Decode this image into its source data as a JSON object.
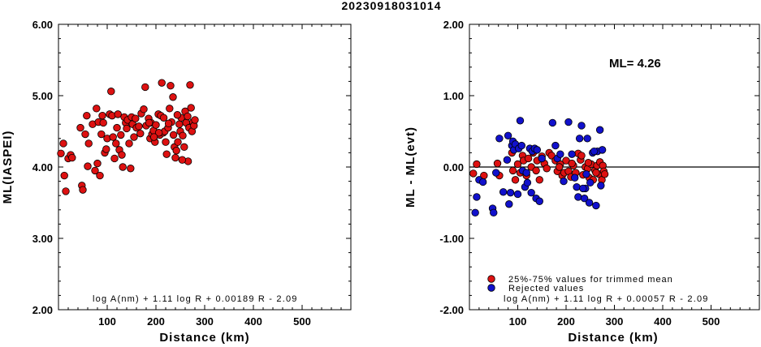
{
  "chart_data": [
    {
      "type": "scatter",
      "title": "20230918031014",
      "xlabel": "Distance (km)",
      "ylabel": "ML(IASPEI)",
      "xlim": [
        0,
        600
      ],
      "ylim": [
        2,
        6
      ],
      "xticks": [
        "100",
        "200",
        "300",
        "400",
        "500"
      ],
      "yticks": [
        "2.00",
        "3.00",
        "4.00",
        "5.00",
        "6.00"
      ],
      "formula": "log A(nm) + 1.11 log R + 0.00189 R - 2.09",
      "point_color": "#dd1111",
      "series": [
        {
          "points": [
            [
              5,
              4.19
            ],
            [
              10,
              4.33
            ],
            [
              12,
              3.88
            ],
            [
              15,
              3.66
            ],
            [
              20,
              4.12
            ],
            [
              25,
              4.17
            ],
            [
              28,
              4.13
            ],
            [
              45,
              4.55
            ],
            [
              48,
              3.74
            ],
            [
              50,
              3.68
            ],
            [
              55,
              4.46
            ],
            [
              58,
              4.72
            ],
            [
              60,
              4.01
            ],
            [
              62,
              4.33
            ],
            [
              70,
              4.6
            ],
            [
              75,
              3.95
            ],
            [
              78,
              4.82
            ],
            [
              80,
              4.05
            ],
            [
              82,
              4.63
            ],
            [
              85,
              3.88
            ],
            [
              88,
              4.46
            ],
            [
              90,
              4.72
            ],
            [
              92,
              4.62
            ],
            [
              95,
              4.2
            ],
            [
              98,
              4.25
            ],
            [
              100,
              4.4
            ],
            [
              105,
              4.74
            ],
            [
              108,
              5.06
            ],
            [
              110,
              4.72
            ],
            [
              112,
              4.42
            ],
            [
              115,
              4.12
            ],
            [
              118,
              4.33
            ],
            [
              120,
              4.55
            ],
            [
              122,
              4.74
            ],
            [
              125,
              4.24
            ],
            [
              128,
              4.45
            ],
            [
              130,
              4.17
            ],
            [
              132,
              4.0
            ],
            [
              135,
              4.7
            ],
            [
              138,
              4.62
            ],
            [
              140,
              4.54
            ],
            [
              142,
              4.66
            ],
            [
              145,
              4.33
            ],
            [
              148,
              3.98
            ],
            [
              150,
              4.7
            ],
            [
              152,
              4.6
            ],
            [
              155,
              4.42
            ],
            [
              158,
              4.68
            ],
            [
              160,
              4.55
            ],
            [
              165,
              4.57
            ],
            [
              168,
              4.47
            ],
            [
              170,
              4.75
            ],
            [
              175,
              4.81
            ],
            [
              178,
              5.12
            ],
            [
              180,
              4.58
            ],
            [
              185,
              4.68
            ],
            [
              188,
              4.4
            ],
            [
              190,
              4.62
            ],
            [
              192,
              4.46
            ],
            [
              195,
              4.51
            ],
            [
              198,
              4.35
            ],
            [
              200,
              4.59
            ],
            [
              205,
              4.74
            ],
            [
              208,
              4.45
            ],
            [
              210,
              4.72
            ],
            [
              212,
              5.18
            ],
            [
              215,
              4.48
            ],
            [
              218,
              4.5
            ],
            [
              220,
              4.35
            ],
            [
              222,
              4.18
            ],
            [
              225,
              4.55
            ],
            [
              228,
              4.82
            ],
            [
              230,
              5.14
            ],
            [
              232,
              4.63
            ],
            [
              235,
              4.98
            ],
            [
              238,
              4.28
            ],
            [
              240,
              4.13
            ],
            [
              242,
              4.23
            ],
            [
              245,
              4.35
            ],
            [
              248,
              4.6
            ],
            [
              250,
              4.5
            ],
            [
              252,
              4.69
            ],
            [
              255,
              4.44
            ],
            [
              258,
              4.28
            ],
            [
              260,
              4.78
            ],
            [
              262,
              4.62
            ],
            [
              265,
              4.71
            ],
            [
              268,
              4.55
            ],
            [
              270,
              5.15
            ],
            [
              272,
              4.83
            ],
            [
              274,
              4.5
            ],
            [
              276,
              4.63
            ],
            [
              278,
              4.58
            ],
            [
              280,
              4.66
            ],
            [
              266,
              4.08
            ],
            [
              254,
              4.1
            ],
            [
              244,
              4.73
            ],
            [
              236,
              4.45
            ],
            [
              226,
              4.61
            ],
            [
              216,
              4.69
            ],
            [
              206,
              4.48
            ],
            [
              196,
              4.42
            ],
            [
              186,
              4.62
            ]
          ]
        }
      ]
    },
    {
      "type": "scatter",
      "xlabel": "Distance (km)",
      "ylabel": "ML - ML(evt)",
      "xlim": [
        0,
        600
      ],
      "ylim": [
        -2,
        2
      ],
      "xticks": [
        "100",
        "200",
        "300",
        "400",
        "500"
      ],
      "yticks": [
        "-2.00",
        "-1.00",
        "0.00",
        "1.00",
        "2.00"
      ],
      "reference_line_y": 0,
      "annotation": "ML= 4.26",
      "formula": "log A(nm) + 1.11 log R + 0.00057 R - 2.09",
      "series": [
        {
          "name": "25%-75% values for trimmed mean",
          "color": "#dd1111",
          "points": [
            [
              8,
              -0.09
            ],
            [
              15,
              0.04
            ],
            [
              30,
              -0.12
            ],
            [
              58,
              0.05
            ],
            [
              62,
              -0.12
            ],
            [
              88,
              0.2
            ],
            [
              90,
              -0.05
            ],
            [
              95,
              -0.18
            ],
            [
              100,
              0.04
            ],
            [
              105,
              -0.08
            ],
            [
              110,
              0.16
            ],
            [
              112,
              0.09
            ],
            [
              118,
              -0.12
            ],
            [
              122,
              0.12
            ],
            [
              128,
              0.0
            ],
            [
              132,
              0.2
            ],
            [
              138,
              -0.05
            ],
            [
              140,
              0.09
            ],
            [
              145,
              -0.18
            ],
            [
              150,
              0.15
            ],
            [
              155,
              0.05
            ],
            [
              160,
              -0.02
            ],
            [
              165,
              0.2
            ],
            [
              170,
              0.16
            ],
            [
              178,
              0.09
            ],
            [
              182,
              -0.06
            ],
            [
              188,
              0.04
            ],
            [
              192,
              -0.12
            ],
            [
              196,
              -0.08
            ],
            [
              200,
              0.09
            ],
            [
              205,
              -0.06
            ],
            [
              210,
              -0.14
            ],
            [
              215,
              0.02
            ],
            [
              220,
              -0.08
            ],
            [
              225,
              0.19
            ],
            [
              230,
              0.1
            ],
            [
              235,
              -0.11
            ],
            [
              240,
              0.0
            ],
            [
              245,
              -0.02
            ],
            [
              248,
              -0.15
            ],
            [
              252,
              0.04
            ],
            [
              256,
              -0.18
            ],
            [
              260,
              -0.05
            ],
            [
              264,
              0.02
            ],
            [
              268,
              -0.1
            ],
            [
              270,
              0.07
            ],
            [
              274,
              -0.18
            ],
            [
              276,
              0.02
            ],
            [
              278,
              -0.06
            ],
            [
              280,
              -0.1
            ],
            [
              262,
              -0.08
            ],
            [
              246,
              0.06
            ],
            [
              232,
              0.16
            ],
            [
              212,
              0.05
            ],
            [
              186,
              0.0
            ]
          ]
        },
        {
          "name": "Rejected values",
          "color": "#1111cc",
          "points": [
            [
              12,
              -0.64
            ],
            [
              15,
              -0.42
            ],
            [
              20,
              -0.18
            ],
            [
              28,
              -0.21
            ],
            [
              48,
              -0.58
            ],
            [
              50,
              -0.64
            ],
            [
              55,
              -0.08
            ],
            [
              62,
              0.4
            ],
            [
              70,
              -0.35
            ],
            [
              78,
              0.1
            ],
            [
              80,
              0.44
            ],
            [
              82,
              -0.52
            ],
            [
              85,
              -0.36
            ],
            [
              88,
              0.3
            ],
            [
              90,
              0.36
            ],
            [
              92,
              0.24
            ],
            [
              95,
              0.32
            ],
            [
              100,
              -0.38
            ],
            [
              102,
              0.26
            ],
            [
              105,
              0.65
            ],
            [
              108,
              0.3
            ],
            [
              110,
              -0.05
            ],
            [
              115,
              -0.28
            ],
            [
              118,
              -0.08
            ],
            [
              120,
              -0.22
            ],
            [
              125,
              0.26
            ],
            [
              128,
              -0.36
            ],
            [
              130,
              0.22
            ],
            [
              135,
              0.26
            ],
            [
              138,
              -0.44
            ],
            [
              140,
              0.24
            ],
            [
              145,
              -0.48
            ],
            [
              150,
              0.12
            ],
            [
              172,
              0.62
            ],
            [
              178,
              0.3
            ],
            [
              182,
              0.12
            ],
            [
              188,
              0.18
            ],
            [
              195,
              -0.2
            ],
            [
              205,
              0.63
            ],
            [
              212,
              0.18
            ],
            [
              218,
              -0.15
            ],
            [
              222,
              -0.28
            ],
            [
              225,
              -0.42
            ],
            [
              228,
              0.4
            ],
            [
              232,
              0.58
            ],
            [
              238,
              -0.44
            ],
            [
              240,
              -0.3
            ],
            [
              242,
              -0.1
            ],
            [
              248,
              -0.5
            ],
            [
              250,
              -0.22
            ],
            [
              255,
              0.2
            ],
            [
              262,
              -0.54
            ],
            [
              265,
              0.22
            ],
            [
              270,
              0.52
            ],
            [
              272,
              -0.26
            ],
            [
              275,
              0.24
            ],
            [
              235,
              -0.3
            ],
            [
              244,
              0.4
            ],
            [
              258,
              0.22
            ]
          ]
        }
      ]
    }
  ]
}
